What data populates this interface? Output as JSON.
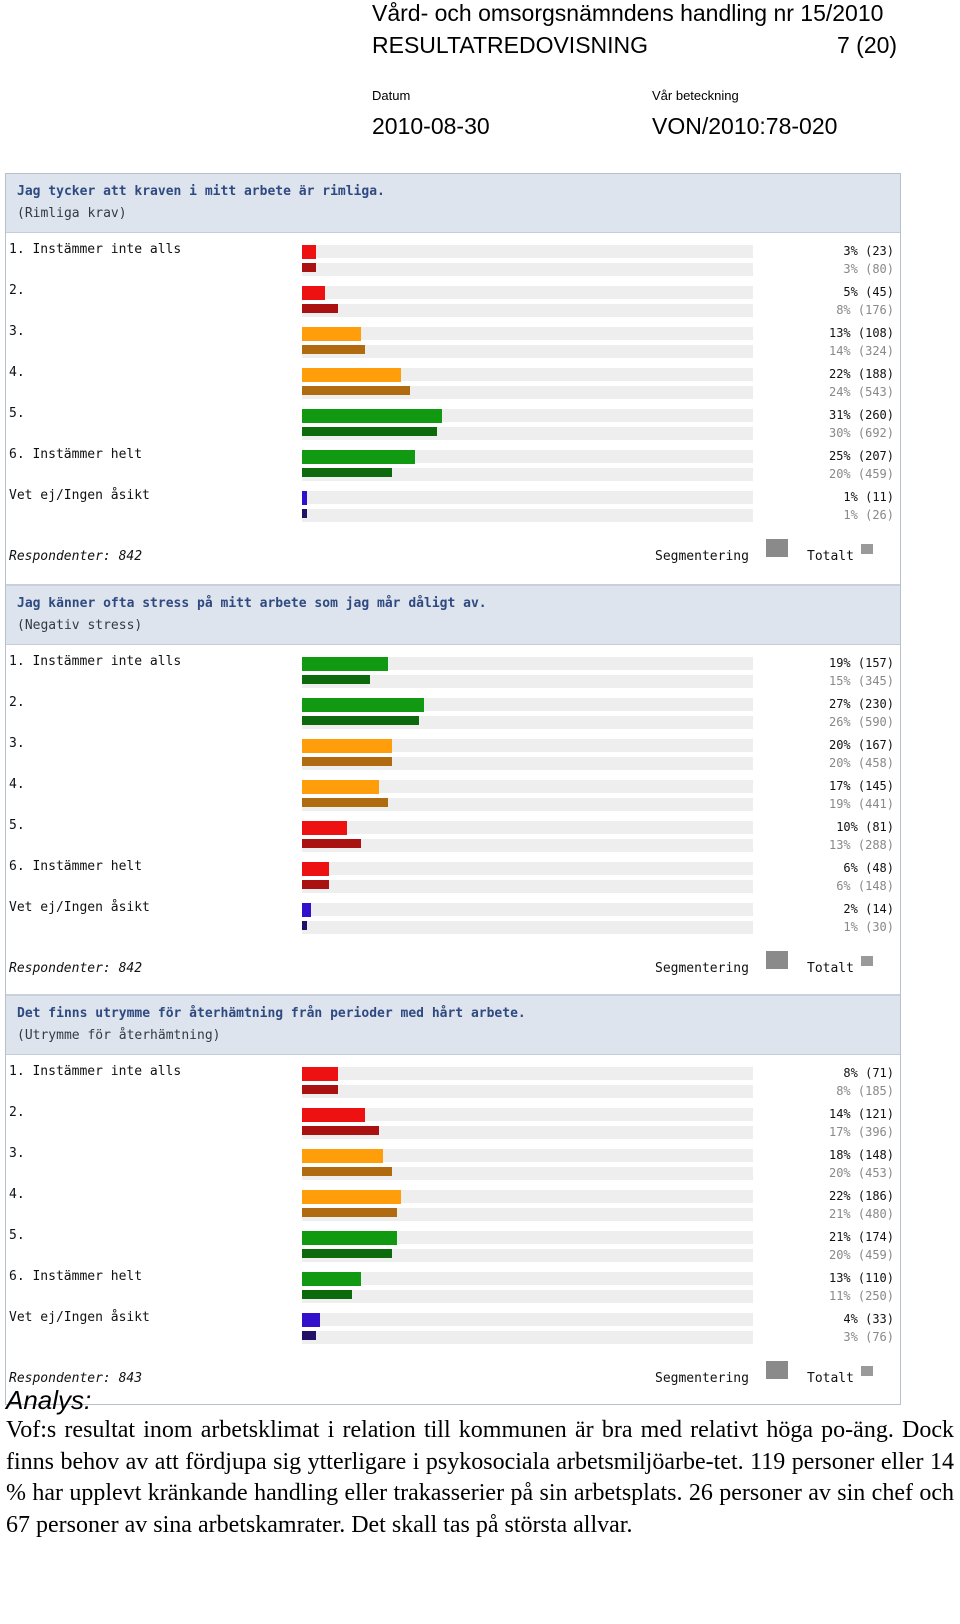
{
  "header": {
    "org_line": "Vård- och omsorgsnämndens handling nr 15/2010",
    "doc_title": "RESULTATREDOVISNING",
    "page_indicator": "7 (20)",
    "date_label": "Datum",
    "date_value": "2010-08-30",
    "ref_label": "Vår beteckning",
    "ref_value": "VON/2010:78-020"
  },
  "legend": {
    "segment_label": "Segmentering",
    "total_label": "Totalt"
  },
  "colors": {
    "red": "#ee1111",
    "dark_red": "#aa1111",
    "orange": "#ff9d0a",
    "dark_orange": "#b06b10",
    "green": "#119911",
    "dark_green": "#0c6a0c",
    "blue": "#3311cc",
    "dark_blue": "#221166"
  },
  "chart_data": [
    {
      "type": "bar",
      "title": "Jag tycker att kraven i mitt arbete är rimliga.",
      "subtitle": "(Rimliga krav)",
      "respondents_label": "Respondenter: 842",
      "categories": [
        "1. Instämmer inte alls",
        "2.",
        "3.",
        "4.",
        "5.",
        "6. Instämmer helt",
        "Vet ej/Ingen åsikt"
      ],
      "bar_colors": [
        "red",
        "red",
        "orange",
        "orange",
        "green",
        "green",
        "blue"
      ],
      "series": [
        {
          "name": "Segmentering",
          "values": [
            3,
            5,
            13,
            22,
            31,
            25,
            1
          ],
          "labels": [
            "3% (23)",
            "5% (45)",
            "13% (108)",
            "22% (188)",
            "31% (260)",
            "25% (207)",
            "1% (11)"
          ]
        },
        {
          "name": "Totalt",
          "values": [
            3,
            8,
            14,
            24,
            30,
            20,
            1
          ],
          "labels": [
            "3% (80)",
            "8% (176)",
            "14% (324)",
            "24% (543)",
            "30% (692)",
            "20% (459)",
            "1% (26)"
          ]
        }
      ]
    },
    {
      "type": "bar",
      "title": "Jag känner  ofta stress på mitt arbete som jag mår dåligt av.",
      "subtitle": "(Negativ stress)",
      "respondents_label": "Respondenter: 842",
      "categories": [
        "1. Instämmer inte alls",
        "2.",
        "3.",
        "4.",
        "5.",
        "6. Instämmer helt",
        "Vet ej/Ingen åsikt"
      ],
      "bar_colors": [
        "green",
        "green",
        "orange",
        "orange",
        "red",
        "red",
        "blue"
      ],
      "series": [
        {
          "name": "Segmentering",
          "values": [
            19,
            27,
            20,
            17,
            10,
            6,
            2
          ],
          "labels": [
            "19% (157)",
            "27% (230)",
            "20% (167)",
            "17% (145)",
            "10% (81)",
            "6% (48)",
            "2% (14)"
          ]
        },
        {
          "name": "Totalt",
          "values": [
            15,
            26,
            20,
            19,
            13,
            6,
            1
          ],
          "labels": [
            "15% (345)",
            "26% (590)",
            "20% (458)",
            "19% (441)",
            "13% (288)",
            "6% (148)",
            "1% (30)"
          ]
        }
      ]
    },
    {
      "type": "bar",
      "title": "Det finns utrymme för återhämtning från perioder med hårt arbete.",
      "subtitle": "(Utrymme för återhämtning)",
      "respondents_label": "Respondenter: 843",
      "categories": [
        "1. Instämmer inte alls",
        "2.",
        "3.",
        "4.",
        "5.",
        "6. Instämmer helt",
        "Vet ej/Ingen åsikt"
      ],
      "bar_colors": [
        "red",
        "red",
        "orange",
        "orange",
        "green",
        "green",
        "blue"
      ],
      "series": [
        {
          "name": "Segmentering",
          "values": [
            8,
            14,
            18,
            22,
            21,
            13,
            4
          ],
          "labels": [
            "8% (71)",
            "14% (121)",
            "18% (148)",
            "22% (186)",
            "21% (174)",
            "13% (110)",
            "4% (33)"
          ]
        },
        {
          "name": "Totalt",
          "values": [
            8,
            17,
            20,
            21,
            20,
            11,
            3
          ],
          "labels": [
            "8% (185)",
            "17% (396)",
            "20% (453)",
            "21% (480)",
            "20% (459)",
            "11% (250)",
            "3% (76)"
          ]
        }
      ]
    }
  ],
  "analysis": {
    "heading": "Analys:",
    "text": "Vof:s resultat inom arbetsklimat i relation till kommunen är bra med relativt höga po-äng. Dock finns behov av att fördjupa sig ytterligare i psykosociala arbetsmiljöarbe-tet. 119 personer eller 14 % har upplevt kränkande handling eller trakasserier på sin arbetsplats. 26 personer av sin chef och 67 personer av sina arbetskamrater. Det skall tas på största allvar."
  }
}
